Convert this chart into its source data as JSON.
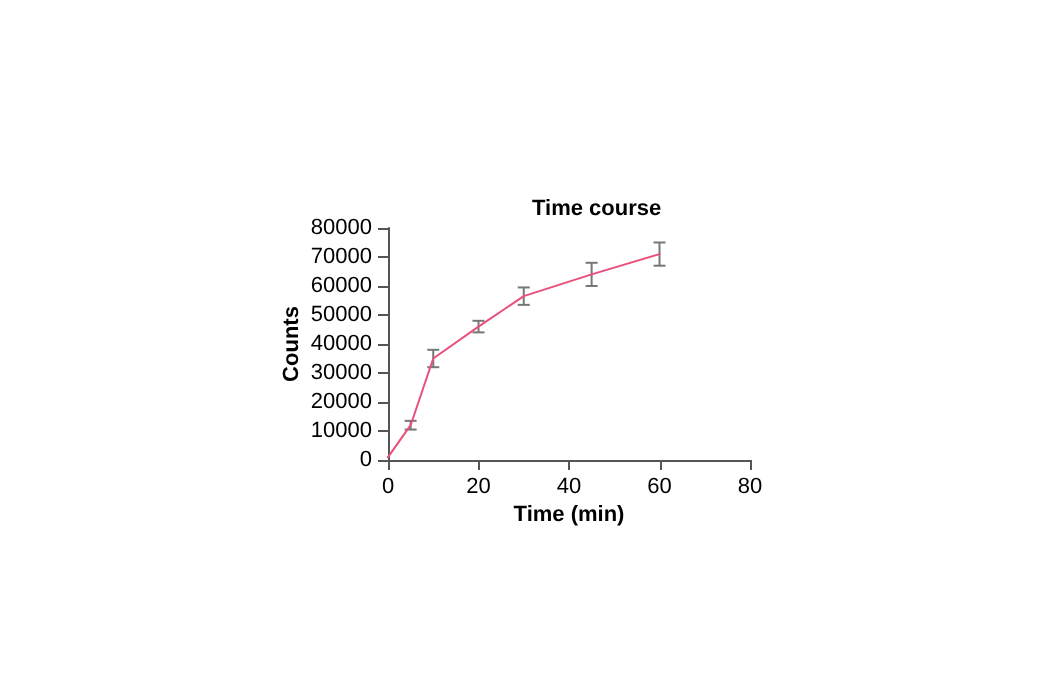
{
  "chart_data": {
    "type": "line",
    "title": "Time course",
    "xlabel": "Time (min)",
    "ylabel": "Counts",
    "x": [
      0,
      5,
      10,
      20,
      30,
      45,
      60
    ],
    "series": [
      {
        "color": "#e8507a",
        "values": [
          1000,
          12000,
          35000,
          46000,
          56500,
          64000,
          71000
        ],
        "errors": [
          null,
          1500,
          3000,
          2000,
          3000,
          4000,
          4000
        ]
      }
    ],
    "xlim": [
      0,
      80
    ],
    "xticks": [
      0,
      20,
      40,
      60,
      80
    ],
    "ylim": [
      0,
      80000
    ],
    "yticks": [
      0,
      10000,
      20000,
      30000,
      40000,
      50000,
      60000,
      70000,
      80000
    ],
    "grid": false,
    "marker": "none",
    "line_style": "solid"
  }
}
